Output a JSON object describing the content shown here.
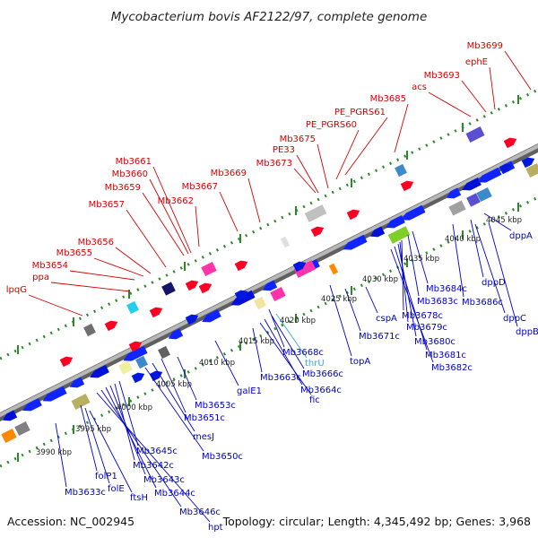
{
  "title": "Mycobacterium bovis AF2122/97, complete genome",
  "footer": {
    "accession": "Accession: NC_002945",
    "summary": "Topology: circular; Length: 4,345,492 bp; Genes: 3,968"
  },
  "colors": {
    "top_labels": "#d40000",
    "bottom_labels": "#0000cc",
    "trna_label": "#33aadd",
    "backbone": "#888888",
    "tick_dots": "#2a8a2a"
  },
  "kbp_ticks": [
    "3990 kbp",
    "3995 kbp",
    "4000 kbp",
    "4005 kbp",
    "4010 kbp",
    "4015 kbp",
    "4020 kbp",
    "4025 kbp",
    "4030 kbp",
    "4035 kbp",
    "4040 kbp",
    "4045 kbp"
  ],
  "top_labels": [
    "Mb3699",
    "ephE",
    "Mb3693",
    "acs",
    "Mb3685",
    "PE_PGRS61",
    "PE_PGRS60",
    "Mb3675",
    "PE33",
    "Mb3673",
    "Mb3669",
    "Mb3667",
    "Mb3662",
    "Mb3661",
    "Mb3660",
    "Mb3659",
    "Mb3657",
    "Mb3656",
    "Mb3655",
    "Mb3654",
    "ppa",
    "lpqG"
  ],
  "bottom_labels": [
    "dppA",
    "dppD",
    "dppC",
    "dppB",
    "Mb3686c",
    "Mb3684c",
    "Mb3683c",
    "Mb3678c",
    "Mb3679c",
    "Mb3680c",
    "Mb3681c",
    "Mb3682c",
    "cspA",
    "Mb3671c",
    "topA",
    "Mb3668c",
    "thrU",
    "Mb3666c",
    "Mb3664c",
    "fic",
    "Mb3663c",
    "galE1",
    "Mb3653c",
    "Mb3651c",
    "mesJ",
    "Mb3650c",
    "Mb3645c",
    "Mb3642c",
    "Mb3643c",
    "Mb3644c",
    "Mb3646c",
    "hpt",
    "folP1",
    "folE",
    "ftsH",
    "Mb3633c"
  ]
}
